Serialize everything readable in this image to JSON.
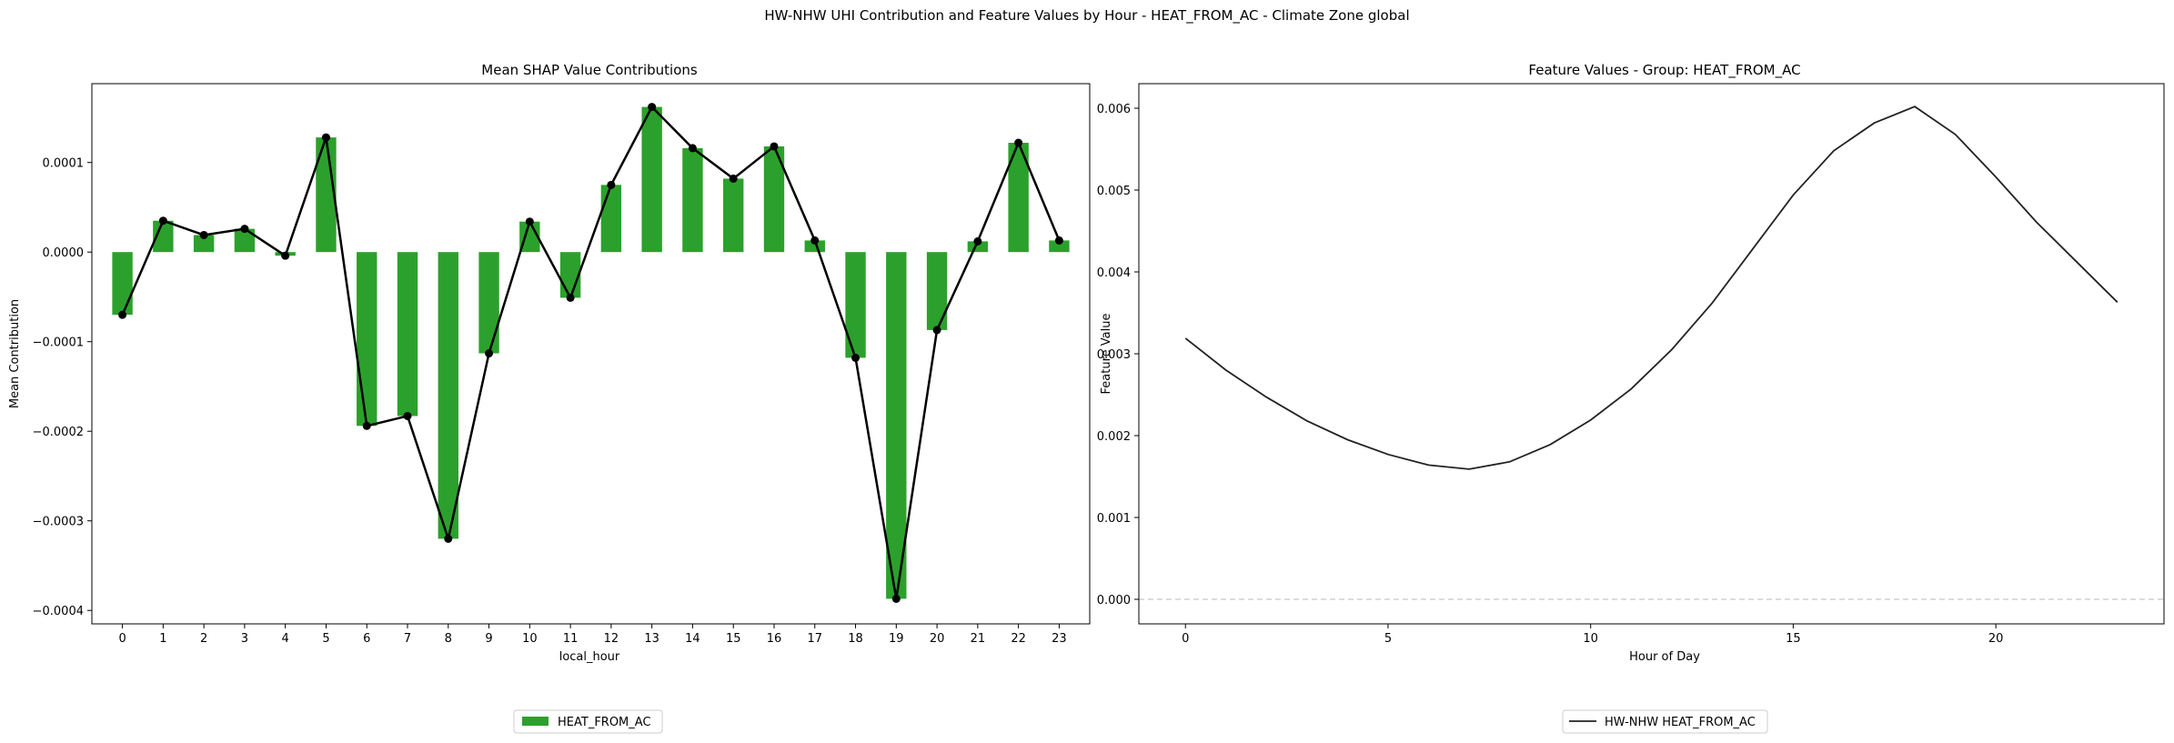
{
  "figure": {
    "suptitle": "HW-NHW UHI Contribution and Feature Values by Hour - HEAT_FROM_AC - Climate Zone global"
  },
  "colors": {
    "bar": "#2ca02c",
    "trend_line": "#000000",
    "feature_line": "#222222",
    "zero_line": "#c8c8c8"
  },
  "chart_data": [
    {
      "type": "bar",
      "title": "Mean SHAP Value Contributions",
      "xlabel": "local_hour",
      "ylabel": "Mean Contribution",
      "categories": [
        "0",
        "1",
        "2",
        "3",
        "4",
        "5",
        "6",
        "7",
        "8",
        "9",
        "10",
        "11",
        "12",
        "13",
        "14",
        "15",
        "16",
        "17",
        "18",
        "19",
        "20",
        "21",
        "22",
        "23"
      ],
      "series": [
        {
          "name": "HEAT_FROM_AC",
          "values": [
            -7e-05,
            3.5e-05,
            1.9e-05,
            2.6e-05,
            -4e-06,
            0.000128,
            -0.000194,
            -0.000183,
            -0.00032,
            -0.000113,
            3.4e-05,
            -5.1e-05,
            7.5e-05,
            0.000162,
            0.000116,
            8.2e-05,
            0.000118,
            1.3e-05,
            -0.000118,
            -0.000387,
            -8.7e-05,
            1.2e-05,
            0.000122,
            1.3e-05
          ]
        }
      ],
      "overlay_line": "points connected by black line with markers at each bar value",
      "ylim": [
        -0.000415,
        0.000188
      ],
      "yticks": [
        -0.0004,
        -0.0003,
        -0.0002,
        -0.0001,
        0.0,
        0.0001
      ],
      "ytick_labels": [
        "−0.0004",
        "−0.0003",
        "−0.0002",
        "−0.0001",
        "0.0000",
        "0.0001"
      ],
      "legend": {
        "placement": "bottom-center",
        "entries": [
          "HEAT_FROM_AC"
        ]
      },
      "grid": false
    },
    {
      "type": "line",
      "title": "Feature Values - Group: HEAT_FROM_AC",
      "xlabel": "Hour of Day",
      "ylabel": "Feature Value",
      "x": [
        0,
        1,
        2,
        3,
        4,
        5,
        6,
        7,
        8,
        9,
        10,
        11,
        12,
        13,
        14,
        15,
        16,
        17,
        18,
        19,
        20,
        21,
        22,
        23
      ],
      "series": [
        {
          "name": "HW-NHW HEAT_FROM_AC",
          "values": [
            0.00319,
            0.0028,
            0.00247,
            0.00218,
            0.00195,
            0.00177,
            0.00164,
            0.00159,
            0.00168,
            0.00189,
            0.00219,
            0.00257,
            0.00305,
            0.00362,
            0.00428,
            0.00494,
            0.00548,
            0.00582,
            0.00602,
            0.00568,
            0.00516,
            0.00461,
            0.00412,
            0.00363
          ]
        }
      ],
      "xlim": [
        -1.15,
        24.15
      ],
      "ylim": [
        -0.0003,
        0.0063
      ],
      "xticks": [
        0,
        5,
        10,
        15,
        20
      ],
      "xtick_labels": [
        "0",
        "5",
        "10",
        "15",
        "20"
      ],
      "yticks": [
        0.0,
        0.001,
        0.002,
        0.003,
        0.004,
        0.005,
        0.006
      ],
      "ytick_labels": [
        "0.000",
        "0.001",
        "0.002",
        "0.003",
        "0.004",
        "0.005",
        "0.006"
      ],
      "reference_line": {
        "y": 0.0,
        "style": "dashed"
      },
      "legend": {
        "placement": "bottom-center",
        "entries": [
          "HW-NHW HEAT_FROM_AC"
        ]
      },
      "grid": false
    }
  ]
}
